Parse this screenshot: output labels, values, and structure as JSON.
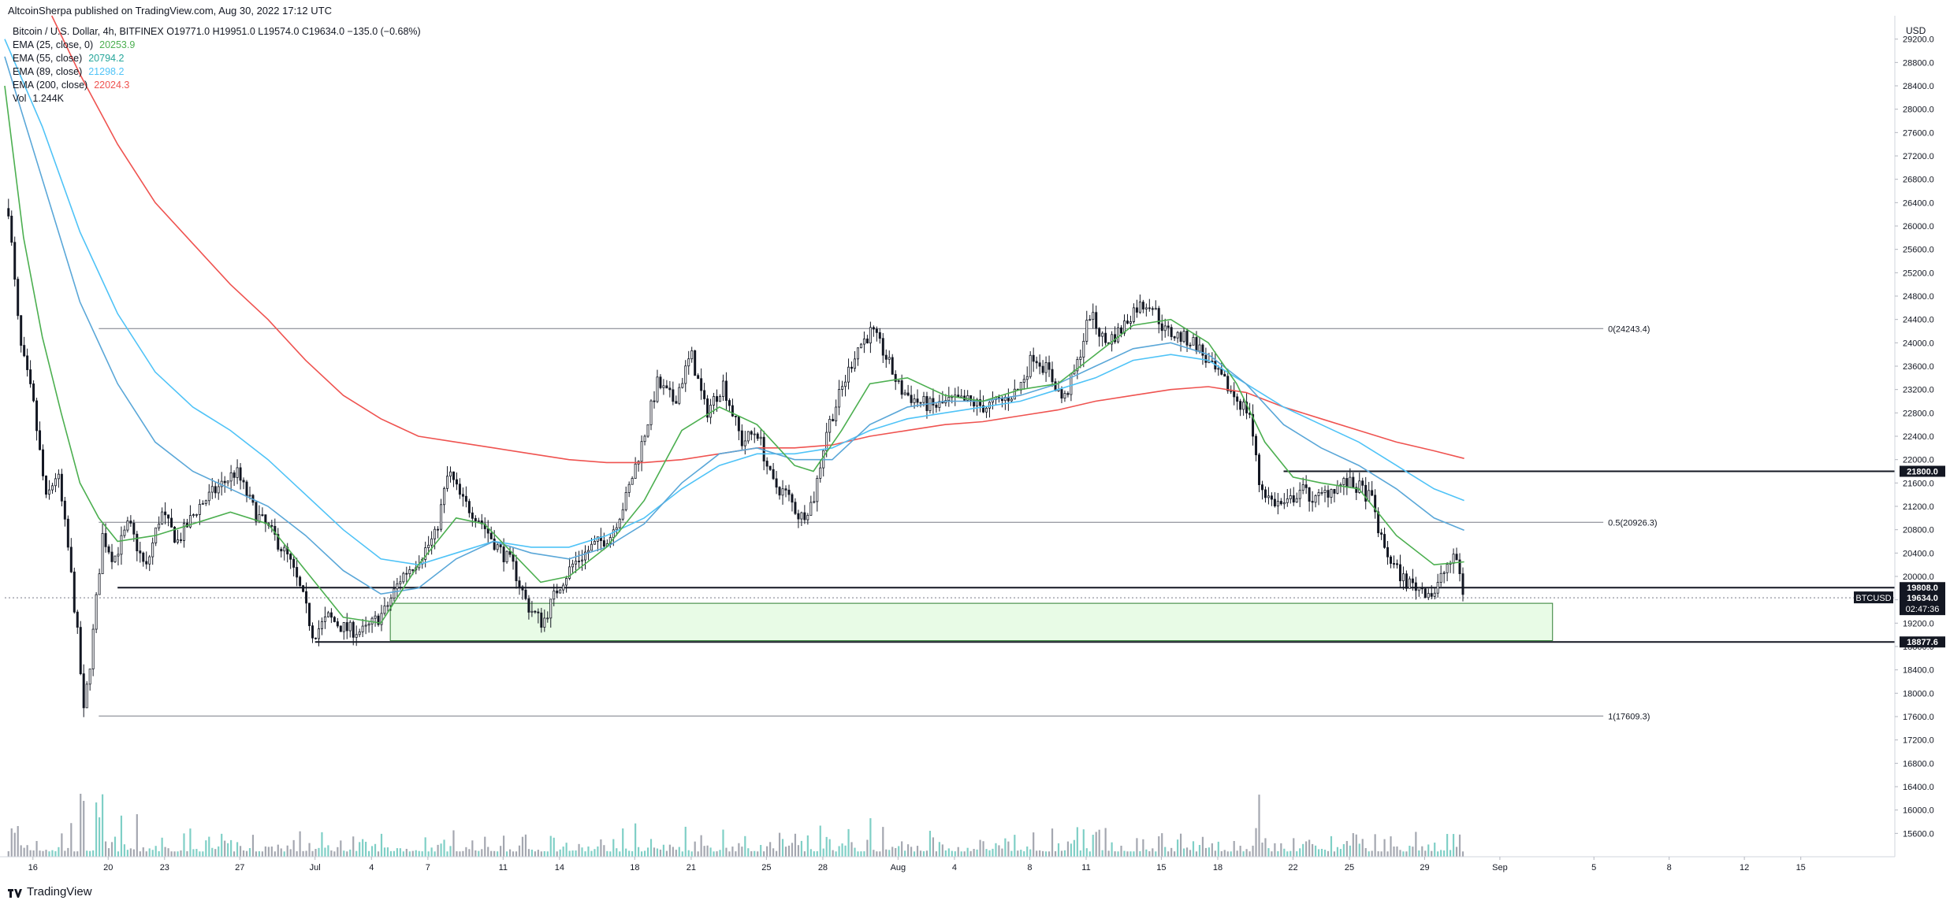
{
  "header": {
    "published": "AltcoinSherpa published on TradingView.com, Aug 30, 2022 17:12 UTC"
  },
  "legend": {
    "symbol_line": "Bitcoin / U.S. Dollar, 4h, BITFINEX  O19771.0  H19951.0  L19574.0  C19634.0  −135.0 (−0.68%)",
    "indicators": [
      {
        "label": "EMA (25, close, 0)",
        "value": "20253.9",
        "color": "#4caf50"
      },
      {
        "label": "EMA (55, close)",
        "value": "20794.2",
        "color": "#26a69a"
      },
      {
        "label": "EMA (89, close)",
        "value": "21298.2",
        "color": "#4fc3f7"
      },
      {
        "label": "EMA (200, close)",
        "value": "22024.3",
        "color": "#ef5350"
      },
      {
        "label": "Vol",
        "value": "1.244K",
        "color": "#131722"
      }
    ]
  },
  "footer": {
    "brand": "TradingView"
  },
  "chart_data": {
    "type": "candlestick",
    "symbol": "BTCUSD",
    "timeframe": "4h",
    "y_axis": {
      "unit": "USD",
      "range": [
        15200,
        29600
      ],
      "ticks": [
        15600,
        16000,
        16400,
        16800,
        17200,
        17600,
        18000,
        18400,
        18800,
        19200,
        19600,
        20000,
        20400,
        20800,
        21200,
        21600,
        22000,
        22400,
        22800,
        23200,
        23600,
        24000,
        24400,
        24800,
        25200,
        25600,
        26000,
        26400,
        26800,
        27200,
        27600,
        28000,
        28400,
        28800,
        29200
      ]
    },
    "x_axis": {
      "ticks": [
        {
          "label": "16",
          "x": 15.5
        },
        {
          "label": "20",
          "x": 19.5
        },
        {
          "label": "23",
          "x": 22.5
        },
        {
          "label": "27",
          "x": 26.5
        },
        {
          "label": "Jul",
          "x": 30.5
        },
        {
          "label": "4",
          "x": 33.5
        },
        {
          "label": "7",
          "x": 36.5
        },
        {
          "label": "11",
          "x": 40.5
        },
        {
          "label": "14",
          "x": 43.5
        },
        {
          "label": "18",
          "x": 47.5
        },
        {
          "label": "21",
          "x": 50.5
        },
        {
          "label": "25",
          "x": 54.5
        },
        {
          "label": "28",
          "x": 57.5
        },
        {
          "label": "Aug",
          "x": 61.5
        },
        {
          "label": "4",
          "x": 64.5
        },
        {
          "label": "8",
          "x": 68.5
        },
        {
          "label": "11",
          "x": 71.5
        },
        {
          "label": "15",
          "x": 75.5
        },
        {
          "label": "18",
          "x": 78.5
        },
        {
          "label": "22",
          "x": 82.5
        },
        {
          "label": "25",
          "x": 85.5
        },
        {
          "label": "29",
          "x": 89.5
        },
        {
          "label": "Sep",
          "x": 93.5
        },
        {
          "label": "5",
          "x": 98.5
        },
        {
          "label": "8",
          "x": 102.5
        },
        {
          "label": "12",
          "x": 106.5
        },
        {
          "label": "15",
          "x": 109.5
        }
      ],
      "range": [
        14,
        114.5
      ]
    },
    "price_path": [
      [
        14.2,
        26300
      ],
      [
        14.8,
        24000
      ],
      [
        15.5,
        23000
      ],
      [
        16.2,
        21300
      ],
      [
        16.8,
        21800
      ],
      [
        17.4,
        20400
      ],
      [
        17.9,
        18900
      ],
      [
        18.2,
        17650
      ],
      [
        18.6,
        18700
      ],
      [
        19.2,
        20700
      ],
      [
        19.8,
        20300
      ],
      [
        20.6,
        20900
      ],
      [
        21.5,
        20100
      ],
      [
        22.3,
        21100
      ],
      [
        23.2,
        20600
      ],
      [
        24.3,
        21200
      ],
      [
        25.3,
        21500
      ],
      [
        26.3,
        21800
      ],
      [
        27.3,
        21100
      ],
      [
        28.3,
        20700
      ],
      [
        29.1,
        20300
      ],
      [
        29.8,
        19700
      ],
      [
        30.4,
        19000
      ],
      [
        31.2,
        19300
      ],
      [
        32.1,
        19100
      ],
      [
        33.1,
        19050
      ],
      [
        34.2,
        19400
      ],
      [
        35.1,
        20000
      ],
      [
        36.0,
        20300
      ],
      [
        36.9,
        20700
      ],
      [
        37.6,
        21800
      ],
      [
        38.3,
        21300
      ],
      [
        39.2,
        21000
      ],
      [
        40.2,
        20500
      ],
      [
        41.0,
        20200
      ],
      [
        41.8,
        19500
      ],
      [
        42.6,
        19200
      ],
      [
        43.4,
        19800
      ],
      [
        44.2,
        20200
      ],
      [
        45.2,
        20500
      ],
      [
        46.2,
        20700
      ],
      [
        47.0,
        21300
      ],
      [
        47.9,
        22300
      ],
      [
        48.7,
        23300
      ],
      [
        49.6,
        23000
      ],
      [
        50.5,
        23800
      ],
      [
        51.3,
        22800
      ],
      [
        52.2,
        23300
      ],
      [
        53.2,
        22300
      ],
      [
        54.0,
        22500
      ],
      [
        54.8,
        21600
      ],
      [
        55.6,
        21400
      ],
      [
        56.3,
        21000
      ],
      [
        57.0,
        21300
      ],
      [
        57.7,
        22500
      ],
      [
        58.5,
        23200
      ],
      [
        59.3,
        23900
      ],
      [
        60.1,
        24200
      ],
      [
        60.8,
        23800
      ],
      [
        61.6,
        23200
      ],
      [
        62.5,
        23000
      ],
      [
        63.4,
        22900
      ],
      [
        64.3,
        23000
      ],
      [
        65.2,
        23000
      ],
      [
        66.1,
        22900
      ],
      [
        67.0,
        23000
      ],
      [
        67.9,
        23200
      ],
      [
        68.7,
        23800
      ],
      [
        69.5,
        23500
      ],
      [
        70.3,
        23000
      ],
      [
        71.0,
        23600
      ],
      [
        71.7,
        24500
      ],
      [
        72.5,
        24000
      ],
      [
        73.3,
        24200
      ],
      [
        74.1,
        24600
      ],
      [
        74.9,
        24700
      ],
      [
        75.7,
        24200
      ],
      [
        76.5,
        24100
      ],
      [
        77.3,
        24000
      ],
      [
        78.1,
        23600
      ],
      [
        78.9,
        23300
      ],
      [
        79.6,
        23000
      ],
      [
        80.2,
        22800
      ],
      [
        80.7,
        21600
      ],
      [
        81.3,
        21300
      ],
      [
        82.1,
        21200
      ],
      [
        82.9,
        21500
      ],
      [
        83.7,
        21300
      ],
      [
        84.5,
        21500
      ],
      [
        85.3,
        21600
      ],
      [
        86.1,
        21500
      ],
      [
        86.7,
        21300
      ],
      [
        87.2,
        20600
      ],
      [
        87.8,
        20200
      ],
      [
        88.5,
        19900
      ],
      [
        89.3,
        19800
      ],
      [
        90.0,
        19700
      ],
      [
        90.7,
        20200
      ],
      [
        91.2,
        20300
      ],
      [
        91.6,
        19634
      ]
    ],
    "ema_25": [
      [
        14.0,
        28400
      ],
      [
        15.0,
        25800
      ],
      [
        16.0,
        24100
      ],
      [
        17.0,
        22800
      ],
      [
        18.0,
        21600
      ],
      [
        19.0,
        21000
      ],
      [
        20.0,
        20600
      ],
      [
        22.0,
        20700
      ],
      [
        24.0,
        20900
      ],
      [
        26.0,
        21100
      ],
      [
        28.0,
        20900
      ],
      [
        30.0,
        20100
      ],
      [
        32.0,
        19300
      ],
      [
        34.0,
        19200
      ],
      [
        36.0,
        20200
      ],
      [
        38.0,
        21000
      ],
      [
        39.5,
        20900
      ],
      [
        41.0,
        20400
      ],
      [
        42.5,
        19900
      ],
      [
        44.0,
        20000
      ],
      [
        46.0,
        20500
      ],
      [
        48.0,
        21300
      ],
      [
        50.0,
        22500
      ],
      [
        52.0,
        22900
      ],
      [
        54.0,
        22600
      ],
      [
        56.0,
        21900
      ],
      [
        57.0,
        21800
      ],
      [
        58.5,
        22500
      ],
      [
        60.0,
        23300
      ],
      [
        62.0,
        23400
      ],
      [
        64.0,
        23100
      ],
      [
        66.0,
        23000
      ],
      [
        68.0,
        23200
      ],
      [
        70.0,
        23300
      ],
      [
        72.0,
        23800
      ],
      [
        74.0,
        24300
      ],
      [
        76.0,
        24400
      ],
      [
        78.0,
        24000
      ],
      [
        79.5,
        23300
      ],
      [
        81.0,
        22300
      ],
      [
        82.5,
        21700
      ],
      [
        84.0,
        21600
      ],
      [
        86.0,
        21500
      ],
      [
        88.0,
        20700
      ],
      [
        90.0,
        20200
      ],
      [
        91.6,
        20250
      ]
    ],
    "ema_55": [
      [
        14.0,
        28900
      ],
      [
        16.0,
        26800
      ],
      [
        18.0,
        24700
      ],
      [
        20.0,
        23300
      ],
      [
        22.0,
        22300
      ],
      [
        24.0,
        21800
      ],
      [
        26.0,
        21500
      ],
      [
        28.0,
        21200
      ],
      [
        30.0,
        20700
      ],
      [
        32.0,
        20100
      ],
      [
        34.0,
        19700
      ],
      [
        36.0,
        19800
      ],
      [
        38.0,
        20300
      ],
      [
        40.0,
        20600
      ],
      [
        42.0,
        20400
      ],
      [
        44.0,
        20300
      ],
      [
        46.0,
        20500
      ],
      [
        48.0,
        20900
      ],
      [
        50.0,
        21600
      ],
      [
        52.0,
        22100
      ],
      [
        54.0,
        22200
      ],
      [
        56.0,
        22000
      ],
      [
        58.0,
        22000
      ],
      [
        60.0,
        22600
      ],
      [
        62.0,
        22900
      ],
      [
        64.0,
        23000
      ],
      [
        66.0,
        23000
      ],
      [
        68.0,
        23100
      ],
      [
        70.0,
        23300
      ],
      [
        72.0,
        23600
      ],
      [
        74.0,
        23900
      ],
      [
        76.0,
        24000
      ],
      [
        78.0,
        23800
      ],
      [
        80.0,
        23300
      ],
      [
        82.0,
        22600
      ],
      [
        84.0,
        22200
      ],
      [
        86.0,
        21900
      ],
      [
        88.0,
        21500
      ],
      [
        90.0,
        21000
      ],
      [
        91.6,
        20790
      ]
    ],
    "ema_89": [
      [
        14.0,
        29200
      ],
      [
        16.0,
        27700
      ],
      [
        18.0,
        25900
      ],
      [
        20.0,
        24500
      ],
      [
        22.0,
        23500
      ],
      [
        24.0,
        22900
      ],
      [
        26.0,
        22500
      ],
      [
        28.0,
        22000
      ],
      [
        30.0,
        21400
      ],
      [
        32.0,
        20800
      ],
      [
        34.0,
        20300
      ],
      [
        36.0,
        20200
      ],
      [
        38.0,
        20400
      ],
      [
        40.0,
        20600
      ],
      [
        42.0,
        20500
      ],
      [
        44.0,
        20500
      ],
      [
        46.0,
        20700
      ],
      [
        48.0,
        21000
      ],
      [
        50.0,
        21500
      ],
      [
        52.0,
        21900
      ],
      [
        54.0,
        22100
      ],
      [
        56.0,
        22100
      ],
      [
        58.0,
        22200
      ],
      [
        60.0,
        22500
      ],
      [
        62.0,
        22700
      ],
      [
        64.0,
        22800
      ],
      [
        66.0,
        22900
      ],
      [
        68.0,
        23000
      ],
      [
        70.0,
        23200
      ],
      [
        72.0,
        23400
      ],
      [
        74.0,
        23700
      ],
      [
        76.0,
        23800
      ],
      [
        78.0,
        23700
      ],
      [
        80.0,
        23300
      ],
      [
        82.0,
        22900
      ],
      [
        84.0,
        22600
      ],
      [
        86.0,
        22300
      ],
      [
        88.0,
        21900
      ],
      [
        90.0,
        21500
      ],
      [
        91.6,
        21300
      ]
    ],
    "ema_200": [
      [
        16.5,
        29600
      ],
      [
        18.0,
        28600
      ],
      [
        20.0,
        27400
      ],
      [
        22.0,
        26400
      ],
      [
        24.0,
        25700
      ],
      [
        26.0,
        25000
      ],
      [
        28.0,
        24400
      ],
      [
        30.0,
        23700
      ],
      [
        32.0,
        23100
      ],
      [
        34.0,
        22700
      ],
      [
        36.0,
        22400
      ],
      [
        38.0,
        22300
      ],
      [
        40.0,
        22200
      ],
      [
        42.0,
        22100
      ],
      [
        44.0,
        22000
      ],
      [
        46.0,
        21950
      ],
      [
        48.0,
        21950
      ],
      [
        50.0,
        22000
      ],
      [
        52.0,
        22100
      ],
      [
        54.0,
        22200
      ],
      [
        56.0,
        22200
      ],
      [
        58.0,
        22250
      ],
      [
        60.0,
        22400
      ],
      [
        62.0,
        22500
      ],
      [
        64.0,
        22600
      ],
      [
        66.0,
        22650
      ],
      [
        68.0,
        22750
      ],
      [
        70.0,
        22850
      ],
      [
        72.0,
        23000
      ],
      [
        74.0,
        23100
      ],
      [
        76.0,
        23200
      ],
      [
        78.0,
        23250
      ],
      [
        80.0,
        23150
      ],
      [
        82.0,
        22900
      ],
      [
        84.0,
        22700
      ],
      [
        86.0,
        22500
      ],
      [
        88.0,
        22300
      ],
      [
        90.0,
        22150
      ],
      [
        91.6,
        22020
      ]
    ],
    "horizontal_levels": [
      {
        "label": "0(24243.4)",
        "price": 24243.4,
        "x_start": 19.0,
        "x_end": 99.0,
        "color": "#787b86"
      },
      {
        "label": "0.5(20926.3)",
        "price": 20926.3,
        "x_start": 19.0,
        "x_end": 99.0,
        "color": "#787b86"
      },
      {
        "label": "1(17609.3)",
        "price": 17609.3,
        "x_start": 19.0,
        "x_end": 99.0,
        "color": "#787b86"
      },
      {
        "label": "21800.0",
        "price": 21800.0,
        "x_start": 82.0,
        "x_end": 114.5,
        "color": "#131722",
        "bold": true
      },
      {
        "label": "19808.0",
        "price": 19808.0,
        "x_start": 20.0,
        "x_end": 114.5,
        "color": "#131722",
        "bold": true
      },
      {
        "label": "18877.6",
        "price": 18877.6,
        "x_start": 30.5,
        "x_end": 114.5,
        "color": "#131722",
        "bold": true
      }
    ],
    "zone": {
      "top": 19540,
      "bottom": 18900,
      "x_start": 34.5,
      "x_end": 96.3,
      "fill": "#e8fbe6",
      "stroke": "#2e7d32"
    },
    "price_label": {
      "symbol": "BTCUSD",
      "price": "19634.0",
      "countdown": "02:47:36"
    },
    "last_price": 19634.0
  }
}
